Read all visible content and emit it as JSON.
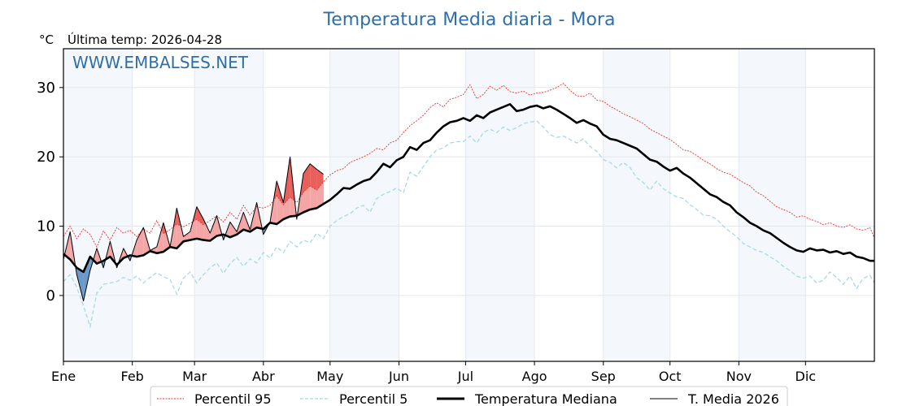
{
  "chart_data": {
    "type": "line",
    "title": "Temperatura Media diaria - Mora",
    "ylabel": "°C",
    "subtitle": "Última temp: 2026-04-28",
    "watermark": "WWW.EMBALSES.NET",
    "ylim": [
      -9.5,
      35.6
    ],
    "xlim": [
      1,
      366
    ],
    "yticks": [
      0,
      10,
      20,
      30
    ],
    "ytick_labels": [
      "0",
      "10",
      "20",
      "30"
    ],
    "month_ticks": [
      1,
      32,
      60,
      91,
      121,
      152,
      182,
      213,
      244,
      274,
      305,
      335
    ],
    "month_labels": [
      "Ene",
      "Feb",
      "Mar",
      "Abr",
      "May",
      "Jun",
      "Jul",
      "Ago",
      "Sep",
      "Oct",
      "Nov",
      "Dic"
    ],
    "shaded_months": [
      "Ene",
      "Mar",
      "May",
      "Jul",
      "Sep",
      "Nov"
    ],
    "grid": true,
    "legend_position": "bottom",
    "legend": [
      "Percentil 95",
      "Percentil 5",
      "Temperatura Mediana",
      "T. Media 2026"
    ],
    "colors": {
      "p95": "#e8302a",
      "p5": "#a8d8e8",
      "median": "#000000",
      "current": "#000000",
      "above_fill": "#f4a6a6",
      "above_extreme_fill": "#e8605c",
      "below_fill": "#6b9ac8",
      "shade": "#f4f8fc",
      "grid": "#e4e8ee",
      "title": "#2f6fa6"
    },
    "x": [
      1,
      4,
      7,
      10,
      13,
      16,
      19,
      22,
      25,
      28,
      31,
      34,
      37,
      40,
      43,
      46,
      49,
      52,
      55,
      58,
      61,
      64,
      67,
      70,
      73,
      76,
      79,
      82,
      85,
      88,
      91,
      94,
      97,
      100,
      103,
      106,
      109,
      112,
      115,
      118,
      121,
      124,
      127,
      130,
      133,
      136,
      139,
      142,
      145,
      148,
      151,
      154,
      157,
      160,
      163,
      166,
      169,
      172,
      175,
      178,
      181,
      184,
      187,
      190,
      193,
      196,
      199,
      202,
      205,
      208,
      211,
      214,
      217,
      220,
      223,
      226,
      229,
      232,
      235,
      238,
      241,
      244,
      247,
      250,
      253,
      256,
      259,
      262,
      265,
      268,
      271,
      274,
      277,
      280,
      283,
      286,
      289,
      292,
      295,
      298,
      301,
      304,
      307,
      310,
      313,
      316,
      319,
      322,
      325,
      328,
      331,
      334,
      337,
      340,
      343,
      346,
      349,
      352,
      355,
      358,
      361,
      364,
      366
    ],
    "series": [
      {
        "name": "Percentil 95",
        "values": [
          8.5,
          10.0,
          8.2,
          9.6,
          8.8,
          7.0,
          9.3,
          8.0,
          9.8,
          9.0,
          9.4,
          8.5,
          9.6,
          9.0,
          10.8,
          8.9,
          9.5,
          10.3,
          9.9,
          10.4,
          11.0,
          10.2,
          10.8,
          11.5,
          10.6,
          12.0,
          11.0,
          13.0,
          11.6,
          12.8,
          12.6,
          13.0,
          14.4,
          13.1,
          14.2,
          13.4,
          14.9,
          15.8,
          15.2,
          16.4,
          17.4,
          18.0,
          18.3,
          19.2,
          19.6,
          20.0,
          20.5,
          21.2,
          21.0,
          22.0,
          22.4,
          23.5,
          24.5,
          25.2,
          26.0,
          27.1,
          27.8,
          27.2,
          28.3,
          28.6,
          29.0,
          30.4,
          28.4,
          29.0,
          30.2,
          29.6,
          30.3,
          29.4,
          29.2,
          29.5,
          28.9,
          29.2,
          29.3,
          29.6,
          30.0,
          30.6,
          29.6,
          28.8,
          28.7,
          29.2,
          28.2,
          28.0,
          27.3,
          26.8,
          26.2,
          25.8,
          25.3,
          24.8,
          24.0,
          23.5,
          23.0,
          22.5,
          21.8,
          21.0,
          20.8,
          20.2,
          19.5,
          19.0,
          18.3,
          17.8,
          17.5,
          16.9,
          16.3,
          15.8,
          14.9,
          14.4,
          13.6,
          12.8,
          12.4,
          12.0,
          11.3,
          11.5,
          11.0,
          10.7,
          10.2,
          10.5,
          10.0,
          9.8,
          10.2,
          9.6,
          9.4,
          9.8,
          8.3
        ]
      },
      {
        "name": "Percentil 5",
        "values": [
          2.0,
          3.0,
          1.2,
          -1.5,
          -4.5,
          0.3,
          1.6,
          1.8,
          2.0,
          2.6,
          2.2,
          2.8,
          1.8,
          2.6,
          3.3,
          2.7,
          2.3,
          0.2,
          2.5,
          3.4,
          1.8,
          3.0,
          4.0,
          4.7,
          3.2,
          4.6,
          5.5,
          4.2,
          5.3,
          4.7,
          6.2,
          5.4,
          7.0,
          6.2,
          7.8,
          7.0,
          8.0,
          7.6,
          9.0,
          8.2,
          10.0,
          10.8,
          11.4,
          11.8,
          12.6,
          13.0,
          12.0,
          14.0,
          14.6,
          15.0,
          15.5,
          14.8,
          17.8,
          17.2,
          18.6,
          20.0,
          21.0,
          21.3,
          22.0,
          22.2,
          22.2,
          23.0,
          22.0,
          23.5,
          24.0,
          23.5,
          24.3,
          23.8,
          24.2,
          24.8,
          25.0,
          25.2,
          24.3,
          23.2,
          22.8,
          23.0,
          22.5,
          22.0,
          22.6,
          21.5,
          20.8,
          19.6,
          19.2,
          18.4,
          19.2,
          18.5,
          17.0,
          16.3,
          15.2,
          16.5,
          15.4,
          14.8,
          14.2,
          14.0,
          13.1,
          12.4,
          11.6,
          11.5,
          11.0,
          10.0,
          9.2,
          8.5,
          7.5,
          7.0,
          6.5,
          6.2,
          5.6,
          5.0,
          4.2,
          3.6,
          2.8,
          2.5,
          2.8,
          1.8,
          2.2,
          3.4,
          2.6,
          1.6,
          2.8,
          1.0,
          2.5,
          2.9,
          1.8
        ]
      },
      {
        "name": "Temperatura Mediana",
        "values": [
          6.0,
          5.2,
          4.0,
          3.4,
          5.6,
          4.6,
          5.0,
          5.6,
          4.4,
          5.4,
          5.8,
          5.6,
          5.8,
          6.4,
          6.1,
          6.3,
          7.0,
          6.8,
          7.8,
          8.0,
          8.2,
          8.0,
          7.9,
          8.6,
          8.8,
          8.4,
          8.8,
          9.5,
          9.2,
          9.8,
          9.6,
          10.5,
          10.3,
          11.0,
          11.4,
          11.5,
          12.0,
          12.4,
          12.6,
          13.2,
          13.8,
          14.6,
          15.5,
          15.4,
          16.0,
          16.5,
          16.8,
          17.8,
          19.0,
          18.5,
          19.5,
          20.0,
          21.4,
          21.0,
          22.0,
          22.4,
          23.5,
          24.4,
          25.0,
          25.2,
          25.6,
          25.2,
          26.0,
          25.6,
          26.4,
          26.8,
          27.2,
          27.6,
          26.6,
          26.8,
          27.2,
          27.4,
          27.0,
          27.3,
          26.8,
          26.2,
          25.6,
          24.9,
          25.3,
          24.8,
          24.4,
          23.2,
          22.6,
          22.4,
          22.0,
          21.6,
          21.2,
          20.4,
          19.6,
          19.3,
          18.6,
          18.0,
          18.4,
          17.6,
          17.0,
          16.2,
          15.4,
          14.6,
          14.2,
          13.5,
          13.0,
          12.0,
          11.3,
          10.5,
          10.0,
          9.4,
          9.0,
          8.3,
          7.6,
          7.0,
          6.5,
          6.3,
          6.8,
          6.5,
          6.6,
          6.2,
          6.4,
          6.0,
          6.2,
          5.6,
          5.4,
          5.0,
          5.0
        ]
      },
      {
        "name": "T. Media 2026",
        "values": [
          5.2,
          9.2,
          3.0,
          -0.8,
          3.6,
          6.8,
          4.0,
          7.8,
          4.0,
          6.8,
          5.0,
          8.0,
          9.8,
          6.5,
          7.0,
          10.5,
          7.0,
          12.6,
          8.5,
          9.2,
          12.8,
          11.0,
          9.0,
          11.5,
          8.0,
          10.6,
          9.2,
          12.0,
          9.5,
          13.4,
          8.8,
          10.6,
          16.5,
          13.4,
          20.0,
          11.0,
          17.6,
          19.0,
          18.2,
          17.5,
          null,
          null,
          null,
          null,
          null,
          null,
          null,
          null,
          null,
          null,
          null,
          null,
          null,
          null,
          null,
          null,
          null,
          null,
          null,
          null,
          null,
          null,
          null,
          null,
          null,
          null,
          null,
          null,
          null,
          null,
          null,
          null,
          null,
          null,
          null,
          null,
          null,
          null,
          null,
          null,
          null,
          null,
          null,
          null,
          null,
          null,
          null,
          null,
          null,
          null,
          null,
          null,
          null,
          null,
          null,
          null,
          null,
          null,
          null,
          null,
          null,
          null,
          null,
          null,
          null,
          null,
          null,
          null,
          null,
          null,
          null,
          null,
          null,
          null,
          null,
          null,
          null,
          null,
          null,
          null,
          null,
          null,
          null
        ]
      }
    ]
  }
}
